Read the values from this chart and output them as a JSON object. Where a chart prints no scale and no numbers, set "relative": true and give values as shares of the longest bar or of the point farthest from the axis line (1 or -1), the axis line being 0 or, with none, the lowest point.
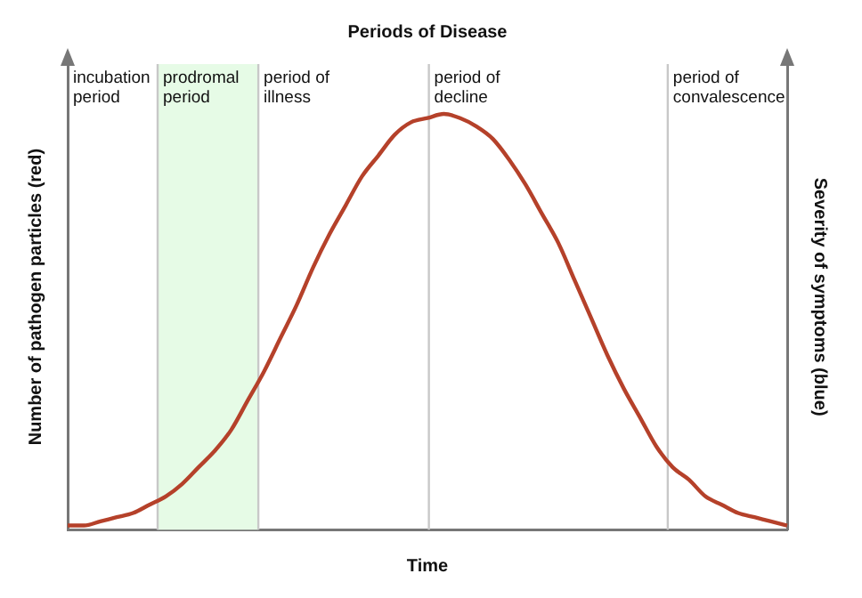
{
  "chart_data": {
    "type": "line",
    "title": "Periods of Disease",
    "xlabel": "Time",
    "ylabel": "Number of pathogen particles (red)",
    "y2label": "Severity of symptoms (blue)",
    "relative": true,
    "grid": false,
    "legend": false,
    "marker": "none",
    "line_style": "solid",
    "categories": [
      null,
      null,
      null,
      null,
      null,
      null,
      null,
      null,
      null,
      null,
      null,
      null,
      null,
      null,
      null,
      null,
      null,
      null,
      null,
      null,
      null,
      null,
      null,
      null,
      null,
      null,
      null,
      null,
      null,
      null,
      null,
      null,
      null,
      null,
      null,
      null,
      null,
      null,
      null,
      null,
      null,
      null,
      null,
      null,
      null
    ],
    "series": [
      {
        "color": "#b5412a",
        "values": [
          0.01,
          0.01,
          0.02,
          0.03,
          0.04,
          0.06,
          0.08,
          0.11,
          0.15,
          0.19,
          0.24,
          0.31,
          0.38,
          0.46,
          0.54,
          0.63,
          0.71,
          0.78,
          0.85,
          0.9,
          0.95,
          0.98,
          0.99,
          1,
          0.99,
          0.97,
          0.94,
          0.89,
          0.83,
          0.76,
          0.69,
          0.6,
          0.51,
          0.42,
          0.34,
          0.27,
          0.2,
          0.15,
          0.12,
          0.08,
          0.06,
          0.04,
          0.03,
          0.02,
          0.01
        ]
      }
    ],
    "annotations": [
      "incubation period",
      "prodromal period",
      "period of illness",
      "period of decline",
      "period of convalescence"
    ]
  }
}
